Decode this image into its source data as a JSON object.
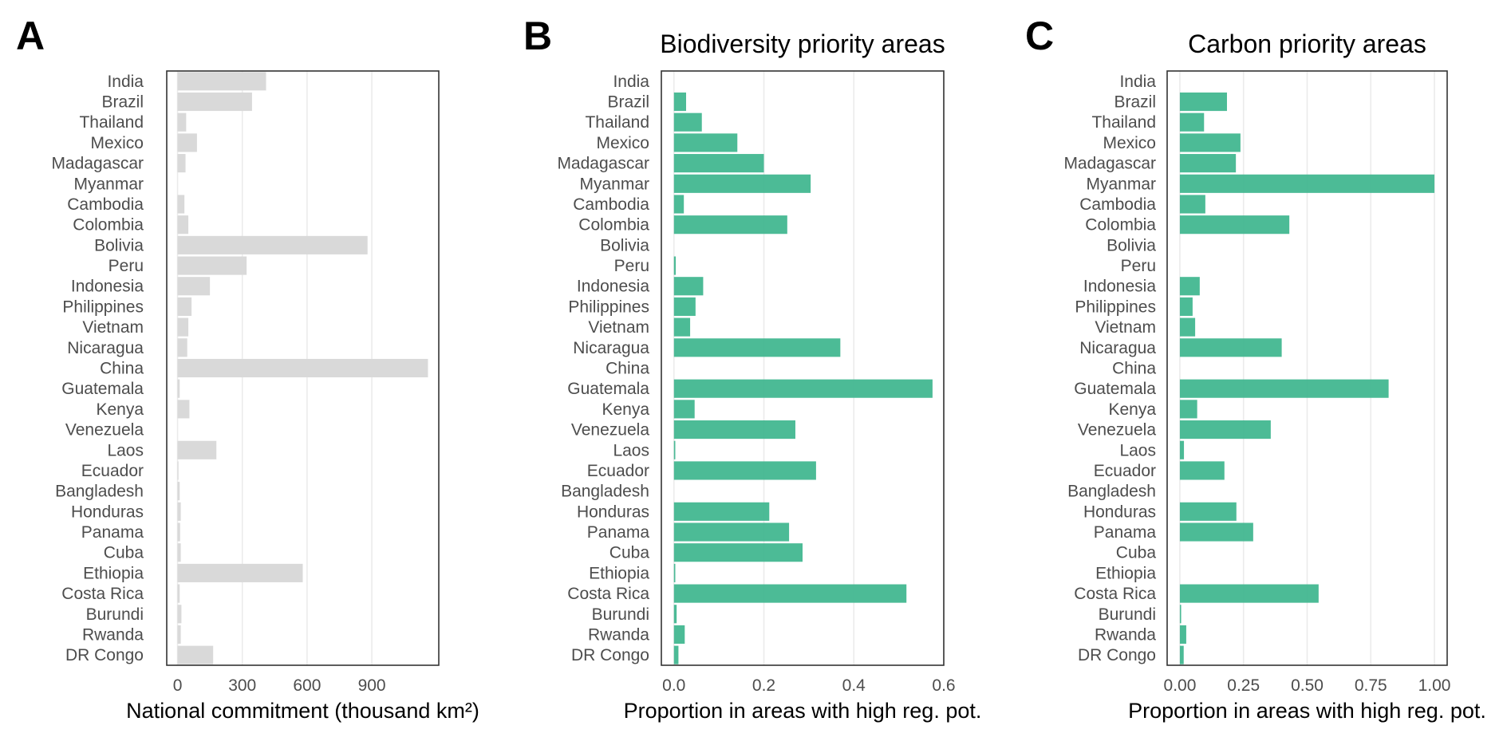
{
  "chart_data": [
    {
      "panel": "A",
      "type": "bar",
      "orientation": "horizontal",
      "title": "",
      "xlabel": "National commitment (thousand km²)",
      "ylabel": "",
      "xlim": [
        -50,
        1210
      ],
      "xticks": [
        0,
        300,
        600,
        900
      ],
      "xtick_labels": [
        "0",
        "300",
        "600",
        "900"
      ],
      "grid": "vertical",
      "color": "#d9d9d9",
      "categories": [
        "India",
        "Brazil",
        "Thailand",
        "Mexico",
        "Madagascar",
        "Myanmar",
        "Cambodia",
        "Colombia",
        "Bolivia",
        "Peru",
        "Indonesia",
        "Philippines",
        "Vietnam",
        "Nicaragua",
        "China",
        "Guatemala",
        "Kenya",
        "Venezuela",
        "Laos",
        "Ecuador",
        "Bangladesh",
        "Honduras",
        "Panama",
        "Cuba",
        "Ethiopia",
        "Costa Rica",
        "Burundi",
        "Rwanda",
        "DR Congo"
      ],
      "values": [
        410,
        345,
        40,
        90,
        37,
        0,
        32,
        50,
        880,
        320,
        150,
        65,
        50,
        45,
        1160,
        10,
        55,
        0,
        180,
        4,
        10,
        15,
        12,
        15,
        580,
        10,
        18,
        15,
        165
      ]
    },
    {
      "panel": "B",
      "type": "bar",
      "orientation": "horizontal",
      "title": "Biodiversity priority areas",
      "xlabel": "Proportion in areas with high reg. pot.",
      "ylabel": "",
      "xlim": [
        -0.028,
        0.6
      ],
      "xticks": [
        0.0,
        0.2,
        0.4,
        0.6
      ],
      "xtick_labels": [
        "0.0",
        "0.2",
        "0.4",
        "0.6"
      ],
      "grid": "vertical",
      "color": "#3db58d",
      "categories": [
        "India",
        "Brazil",
        "Thailand",
        "Mexico",
        "Madagascar",
        "Myanmar",
        "Cambodia",
        "Colombia",
        "Bolivia",
        "Peru",
        "Indonesia",
        "Philippines",
        "Vietnam",
        "Nicaragua",
        "China",
        "Guatemala",
        "Kenya",
        "Venezuela",
        "Laos",
        "Ecuador",
        "Bangladesh",
        "Honduras",
        "Panama",
        "Cuba",
        "Ethiopia",
        "Costa Rica",
        "Burundi",
        "Rwanda",
        "DR Congo"
      ],
      "values": [
        0,
        0.027,
        0.062,
        0.141,
        0.2,
        0.304,
        0.022,
        0.252,
        0,
        0.004,
        0.065,
        0.048,
        0.036,
        0.37,
        0,
        0.575,
        0.046,
        0.27,
        0.003,
        0.316,
        0,
        0.212,
        0.256,
        0.286,
        0.003,
        0.517,
        0.006,
        0.024,
        0.01
      ]
    },
    {
      "panel": "C",
      "type": "bar",
      "orientation": "horizontal",
      "title": "Carbon priority areas",
      "xlabel": "Proportion in areas with high reg. pot.",
      "ylabel": "",
      "xlim": [
        -0.05,
        1.05
      ],
      "xticks": [
        0.0,
        0.25,
        0.5,
        0.75,
        1.0
      ],
      "xtick_labels": [
        "0.00",
        "0.25",
        "0.50",
        "0.75",
        "1.00"
      ],
      "grid": "vertical",
      "color": "#3db58d",
      "categories": [
        "India",
        "Brazil",
        "Thailand",
        "Mexico",
        "Madagascar",
        "Myanmar",
        "Cambodia",
        "Colombia",
        "Bolivia",
        "Peru",
        "Indonesia",
        "Philippines",
        "Vietnam",
        "Nicaragua",
        "China",
        "Guatemala",
        "Kenya",
        "Venezuela",
        "Laos",
        "Ecuador",
        "Bangladesh",
        "Honduras",
        "Panama",
        "Cuba",
        "Ethiopia",
        "Costa Rica",
        "Burundi",
        "Rwanda",
        "DR Congo"
      ],
      "values": [
        0,
        0.185,
        0.095,
        0.238,
        0.22,
        1.0,
        0.1,
        0.43,
        0,
        0,
        0.078,
        0.05,
        0.06,
        0.4,
        0,
        0.82,
        0.068,
        0.357,
        0.016,
        0.175,
        0,
        0.222,
        0.288,
        0,
        0,
        0.545,
        0.005,
        0.025,
        0.015
      ]
    }
  ]
}
